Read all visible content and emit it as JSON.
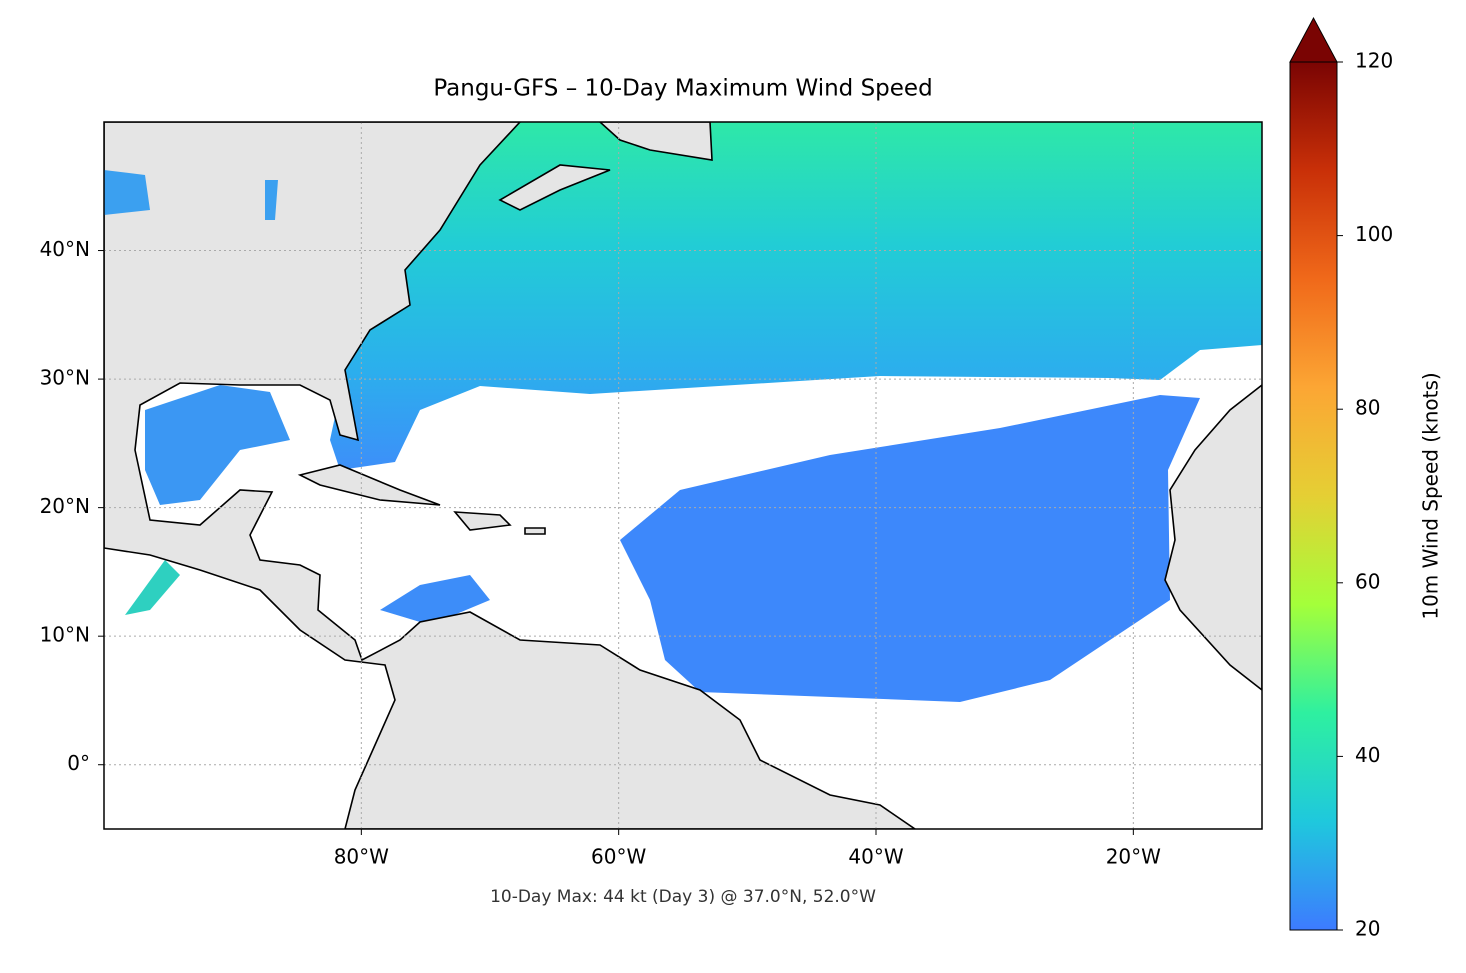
{
  "chart_data": {
    "type": "map",
    "title": "Pangu-GFS – 10-Day Maximum Wind Speed",
    "annotation": "10-Day Max: 44 kt (Day 3) @ 37.0°N, 52.0°W",
    "xlim": [
      -100,
      -10
    ],
    "ylim": [
      -5,
      50
    ],
    "xticks": [
      {
        "value": -80,
        "label": "80°W"
      },
      {
        "value": -60,
        "label": "60°W"
      },
      {
        "value": -40,
        "label": "40°W"
      },
      {
        "value": -20,
        "label": "20°W"
      }
    ],
    "yticks": [
      {
        "value": 0,
        "label": "0°"
      },
      {
        "value": 10,
        "label": "10°N"
      },
      {
        "value": 20,
        "label": "20°N"
      },
      {
        "value": 30,
        "label": "30°N"
      },
      {
        "value": 40,
        "label": "40°N"
      }
    ],
    "grid": true,
    "colorbar": {
      "label": "10m Wind Speed (knots)",
      "lim": [
        20,
        120
      ],
      "ticks": [
        20,
        40,
        60,
        80,
        100,
        120
      ],
      "colors": [
        "#3d7bff",
        "#1fc8dd",
        "#2ef0a0",
        "#a4ff3a",
        "#e5cf34",
        "#fca634",
        "#f0691a",
        "#c93008",
        "#7a0403"
      ]
    }
  }
}
